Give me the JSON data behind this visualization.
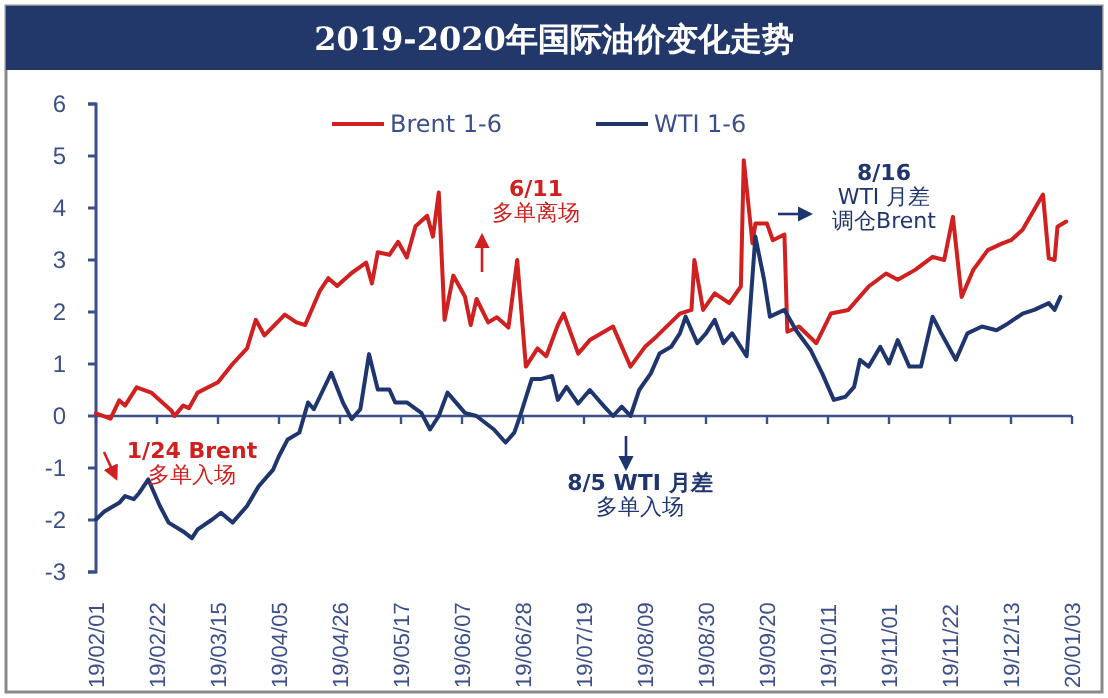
{
  "chart_data": {
    "type": "line",
    "title": "2019-2020年国际油价变化走势",
    "legend": "top",
    "line_style": "solid",
    "xlim": [
      "2019-02-01",
      "2020-01-03"
    ],
    "xticks": [
      {
        "value": "2019-02-01",
        "label": "19/02/01"
      },
      {
        "value": "2019-02-22",
        "label": "19/02/22"
      },
      {
        "value": "2019-03-15",
        "label": "19/03/15"
      },
      {
        "value": "2019-04-05",
        "label": "19/04/05"
      },
      {
        "value": "2019-04-26",
        "label": "19/04/26"
      },
      {
        "value": "2019-05-17",
        "label": "19/05/17"
      },
      {
        "value": "2019-06-07",
        "label": "19/06/07"
      },
      {
        "value": "2019-06-28",
        "label": "19/06/28"
      },
      {
        "value": "2019-07-19",
        "label": "19/07/19"
      },
      {
        "value": "2019-08-09",
        "label": "19/08/09"
      },
      {
        "value": "2019-08-30",
        "label": "19/08/30"
      },
      {
        "value": "2019-09-20",
        "label": "19/09/20"
      },
      {
        "value": "2019-10-11",
        "label": "19/10/11"
      },
      {
        "value": "2019-11-01",
        "label": "19/11/01"
      },
      {
        "value": "2019-11-22",
        "label": "19/11/22"
      },
      {
        "value": "2019-12-13",
        "label": "19/12/13"
      },
      {
        "value": "2020-01-03",
        "label": "20/01/03"
      }
    ],
    "ylim": [
      -3,
      6
    ],
    "yticks": [
      -3,
      -2,
      -1,
      0,
      1,
      2,
      3,
      4,
      5,
      6
    ],
    "annotations": [
      "1/24 Brent",
      "多单入场",
      "6/11",
      "多单离场",
      "8/5 WTI 月差",
      "多单入场",
      "8/16",
      "WTI 月差",
      "调仓Brent"
    ],
    "ref_lines": [
      {
        "axis": "y",
        "value": 0,
        "color": "#3d4f8a"
      }
    ],
    "series": [
      {
        "name": "Brent 1-6",
        "color": "#d0201f",
        "x": [
          "2019-02-01",
          "2019-02-06",
          "2019-02-09",
          "2019-02-11",
          "2019-02-15",
          "2019-02-20",
          "2019-02-27",
          "2019-02-28",
          "2019-03-03",
          "2019-03-05",
          "2019-03-08",
          "2019-03-15",
          "2019-03-20",
          "2019-03-25",
          "2019-03-28",
          "2019-03-31",
          "2019-04-07",
          "2019-04-11",
          "2019-04-14",
          "2019-04-19",
          "2019-04-22",
          "2019-04-25",
          "2019-04-30",
          "2019-05-05",
          "2019-05-07",
          "2019-05-09",
          "2019-05-13",
          "2019-05-16",
          "2019-05-19",
          "2019-05-22",
          "2019-05-26",
          "2019-05-28",
          "2019-05-30",
          "2019-06-01",
          "2019-06-04",
          "2019-06-08",
          "2019-06-10",
          "2019-06-12",
          "2019-06-16",
          "2019-06-19",
          "2019-06-23",
          "2019-06-26",
          "2019-06-29",
          "2019-07-03",
          "2019-07-06",
          "2019-07-10",
          "2019-07-12",
          "2019-07-17",
          "2019-07-21",
          "2019-07-29",
          "2019-08-04",
          "2019-08-09",
          "2019-08-13",
          "2019-08-21",
          "2019-08-25",
          "2019-08-26",
          "2019-08-29",
          "2019-09-02",
          "2019-09-07",
          "2019-09-11",
          "2019-09-12",
          "2019-09-15",
          "2019-09-16",
          "2019-09-20",
          "2019-09-22",
          "2019-09-26",
          "2019-09-27",
          "2019-10-01",
          "2019-10-07",
          "2019-10-12",
          "2019-10-18",
          "2019-10-25",
          "2019-10-31",
          "2019-11-04",
          "2019-11-10",
          "2019-11-16",
          "2019-11-20",
          "2019-11-23",
          "2019-11-26",
          "2019-11-30",
          "2019-12-05",
          "2019-12-10",
          "2019-12-13",
          "2019-12-17",
          "2019-12-24",
          "2019-12-26",
          "2019-12-28",
          "2019-12-29",
          "2020-01-01"
        ],
        "values": [
          0.05,
          -0.05,
          0.3,
          0.2,
          0.55,
          0.45,
          0.1,
          0,
          0.2,
          0.15,
          0.45,
          0.65,
          1.0,
          1.3,
          1.85,
          1.55,
          1.95,
          1.8,
          1.75,
          2.4,
          2.65,
          2.5,
          2.75,
          2.95,
          2.55,
          3.15,
          3.1,
          3.35,
          3.05,
          3.65,
          3.85,
          3.45,
          4.3,
          1.85,
          2.7,
          2.3,
          1.75,
          2.25,
          1.8,
          1.9,
          1.7,
          3.0,
          0.95,
          1.3,
          1.15,
          1.75,
          1.97,
          1.2,
          1.46,
          1.72,
          0.95,
          1.33,
          1.53,
          1.97,
          2.04,
          3.0,
          2.04,
          2.36,
          2.17,
          2.49,
          4.92,
          3.32,
          3.7,
          3.7,
          3.38,
          3.49,
          1.62,
          1.72,
          1.4,
          1.97,
          2.04,
          2.49,
          2.74,
          2.62,
          2.81,
          3.06,
          3.0,
          3.83,
          2.29,
          2.81,
          3.19,
          3.32,
          3.38,
          3.58,
          4.26,
          3.03,
          3.0,
          3.64,
          3.74
        ]
      },
      {
        "name": "WTI 1-6",
        "color": "#1f356e",
        "x": [
          "2019-02-01",
          "2019-02-04",
          "2019-02-09",
          "2019-02-11",
          "2019-02-14",
          "2019-02-16",
          "2019-02-19",
          "2019-02-23",
          "2019-02-26",
          "2019-03-03",
          "2019-03-06",
          "2019-03-08",
          "2019-03-13",
          "2019-03-16",
          "2019-03-20",
          "2019-03-25",
          "2019-03-29",
          "2019-04-03",
          "2019-04-05",
          "2019-04-08",
          "2019-04-12",
          "2019-04-15",
          "2019-04-17",
          "2019-04-23",
          "2019-04-27",
          "2019-04-30",
          "2019-05-03",
          "2019-05-06",
          "2019-05-09",
          "2019-05-13",
          "2019-05-15",
          "2019-05-19",
          "2019-05-24",
          "2019-05-27",
          "2019-05-30",
          "2019-06-02",
          "2019-06-06",
          "2019-06-08",
          "2019-06-12",
          "2019-06-18",
          "2019-06-22",
          "2019-06-25",
          "2019-06-27",
          "2019-07-01",
          "2019-07-04",
          "2019-07-08",
          "2019-07-10",
          "2019-07-13",
          "2019-07-17",
          "2019-07-21",
          "2019-07-26",
          "2019-07-29",
          "2019-08-01",
          "2019-08-04",
          "2019-08-07",
          "2019-08-11",
          "2019-08-14",
          "2019-08-18",
          "2019-08-21",
          "2019-08-23",
          "2019-08-27",
          "2019-08-30",
          "2019-09-02",
          "2019-09-05",
          "2019-09-08",
          "2019-09-13",
          "2019-09-16",
          "2019-09-19",
          "2019-09-21",
          "2019-09-26",
          "2019-09-30",
          "2019-10-05",
          "2019-10-09",
          "2019-10-13",
          "2019-10-17",
          "2019-10-20",
          "2019-10-22",
          "2019-10-25",
          "2019-10-29",
          "2019-11-01",
          "2019-11-04",
          "2019-11-08",
          "2019-11-12",
          "2019-11-16",
          "2019-11-19",
          "2019-11-24",
          "2019-11-28",
          "2019-12-03",
          "2019-12-08",
          "2019-12-12",
          "2019-12-17",
          "2019-12-21",
          "2019-12-26",
          "2019-12-28",
          "2019-12-30"
        ],
        "values": [
          -1.99,
          -1.83,
          -1.67,
          -1.54,
          -1.6,
          -1.47,
          -1.22,
          -1.73,
          -2.05,
          -2.22,
          -2.35,
          -2.18,
          -1.99,
          -1.86,
          -2.05,
          -1.73,
          -1.35,
          -1.03,
          -0.77,
          -0.45,
          -0.32,
          0.26,
          0.13,
          0.83,
          0.26,
          -0.06,
          0.13,
          1.19,
          0.51,
          0.51,
          0.26,
          0.26,
          0.06,
          -0.26,
          0,
          0.45,
          0.19,
          0.06,
          0,
          -0.26,
          -0.51,
          -0.32,
          0,
          0.71,
          0.71,
          0.77,
          0.31,
          0.56,
          0.24,
          0.5,
          0.18,
          0,
          0.18,
          0,
          0.5,
          0.82,
          1.2,
          1.33,
          1.59,
          1.91,
          1.4,
          1.59,
          1.85,
          1.4,
          1.59,
          1.15,
          3.45,
          2.62,
          1.91,
          2.04,
          1.65,
          1.27,
          0.82,
          0.31,
          0.37,
          0.56,
          1.08,
          0.95,
          1.33,
          1.01,
          1.46,
          0.95,
          0.95,
          1.91,
          1.59,
          1.08,
          1.59,
          1.72,
          1.65,
          1.78,
          1.97,
          2.04,
          2.17,
          2.04,
          2.29
        ]
      }
    ]
  }
}
